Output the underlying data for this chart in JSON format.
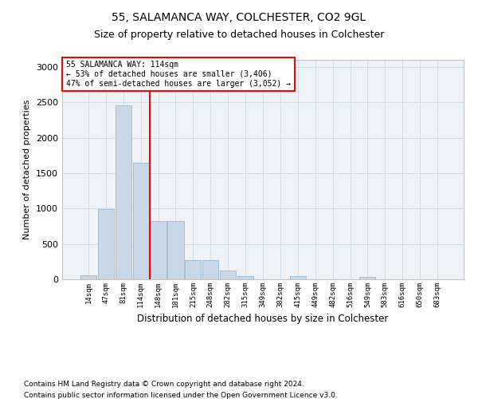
{
  "title1": "55, SALAMANCA WAY, COLCHESTER, CO2 9GL",
  "title2": "Size of property relative to detached houses in Colchester",
  "xlabel": "Distribution of detached houses by size in Colchester",
  "ylabel": "Number of detached properties",
  "bin_labels": [
    "14sqm",
    "47sqm",
    "81sqm",
    "114sqm",
    "148sqm",
    "181sqm",
    "215sqm",
    "248sqm",
    "282sqm",
    "315sqm",
    "349sqm",
    "382sqm",
    "415sqm",
    "449sqm",
    "482sqm",
    "516sqm",
    "549sqm",
    "583sqm",
    "616sqm",
    "650sqm",
    "683sqm"
  ],
  "bar_values": [
    55,
    990,
    2460,
    1650,
    820,
    820,
    270,
    270,
    120,
    50,
    0,
    0,
    45,
    0,
    0,
    0,
    35,
    0,
    0,
    0,
    0
  ],
  "bar_color": "#c8d8e8",
  "bar_edgecolor": "#9ab8d0",
  "annotation_label": "55 SALAMANCA WAY: 114sqm",
  "annotation_line1": "← 53% of detached houses are smaller (3,406)",
  "annotation_line2": "47% of semi-detached houses are larger (3,052) →",
  "vline_color": "red",
  "annotation_box_edgecolor": "red",
  "footnote1": "Contains HM Land Registry data © Crown copyright and database right 2024.",
  "footnote2": "Contains public sector information licensed under the Open Government Licence v3.0.",
  "grid_color": "#d0dce8",
  "bg_color": "#eef2f7",
  "ylim": [
    0,
    3100
  ],
  "yticks": [
    0,
    500,
    1000,
    1500,
    2000,
    2500,
    3000
  ],
  "vline_idx": 3,
  "figsize": [
    6.0,
    5.0
  ],
  "dpi": 100
}
